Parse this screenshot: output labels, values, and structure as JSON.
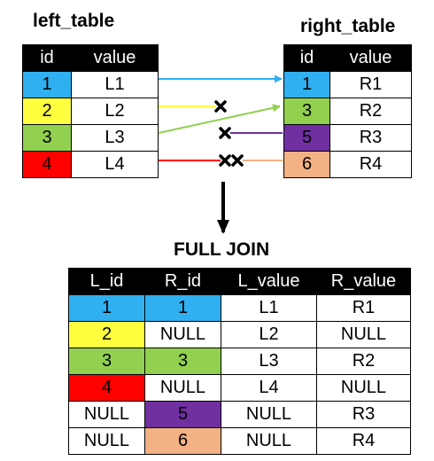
{
  "colors": {
    "blue": "#30b0f0",
    "yellow": "#ffff40",
    "green": "#92d050",
    "red": "#ff0000",
    "purple": "#7030a0",
    "salmon": "#f4b183",
    "white": "#ffffff",
    "header": "#000000"
  },
  "left_table": {
    "title": "left_table",
    "headers": [
      "id",
      "value"
    ],
    "rows": [
      {
        "id": "1",
        "value": "L1",
        "color": "blue"
      },
      {
        "id": "2",
        "value": "L2",
        "color": "yellow"
      },
      {
        "id": "3",
        "value": "L3",
        "color": "green"
      },
      {
        "id": "4",
        "value": "L4",
        "color": "red"
      }
    ]
  },
  "right_table": {
    "title": "right_table",
    "headers": [
      "id",
      "value"
    ],
    "rows": [
      {
        "id": "1",
        "value": "R1",
        "color": "blue"
      },
      {
        "id": "3",
        "value": "R2",
        "color": "green"
      },
      {
        "id": "5",
        "value": "R3",
        "color": "purple"
      },
      {
        "id": "6",
        "value": "R4",
        "color": "salmon"
      }
    ]
  },
  "connections": [
    {
      "from": "L1",
      "to": "R1",
      "type": "match",
      "color": "blue"
    },
    {
      "from": "L2",
      "type": "no-match",
      "color": "yellow"
    },
    {
      "from": "L3",
      "to": "R2",
      "type": "match",
      "color": "green"
    },
    {
      "from": "R3",
      "type": "no-match",
      "color": "purple"
    },
    {
      "from": "L4",
      "type": "no-match",
      "color": "red"
    },
    {
      "from": "R4",
      "type": "no-match",
      "color": "salmon"
    }
  ],
  "operation_label": "FULL JOIN",
  "result_table": {
    "headers": [
      "L_id",
      "R_id",
      "L_value",
      "R_value"
    ],
    "rows": [
      {
        "cells": [
          "1",
          "1",
          "L1",
          "R1"
        ],
        "colors": [
          "blue",
          "blue",
          "white",
          "white"
        ]
      },
      {
        "cells": [
          "2",
          "NULL",
          "L2",
          "NULL"
        ],
        "colors": [
          "yellow",
          "white",
          "white",
          "white"
        ]
      },
      {
        "cells": [
          "3",
          "3",
          "L3",
          "R2"
        ],
        "colors": [
          "green",
          "green",
          "white",
          "white"
        ]
      },
      {
        "cells": [
          "4",
          "NULL",
          "L4",
          "NULL"
        ],
        "colors": [
          "red",
          "white",
          "white",
          "white"
        ]
      },
      {
        "cells": [
          "NULL",
          "5",
          "NULL",
          "R3"
        ],
        "colors": [
          "white",
          "purple",
          "white",
          "white"
        ]
      },
      {
        "cells": [
          "NULL",
          "6",
          "NULL",
          "R4"
        ],
        "colors": [
          "white",
          "salmon",
          "white",
          "white"
        ]
      }
    ]
  }
}
